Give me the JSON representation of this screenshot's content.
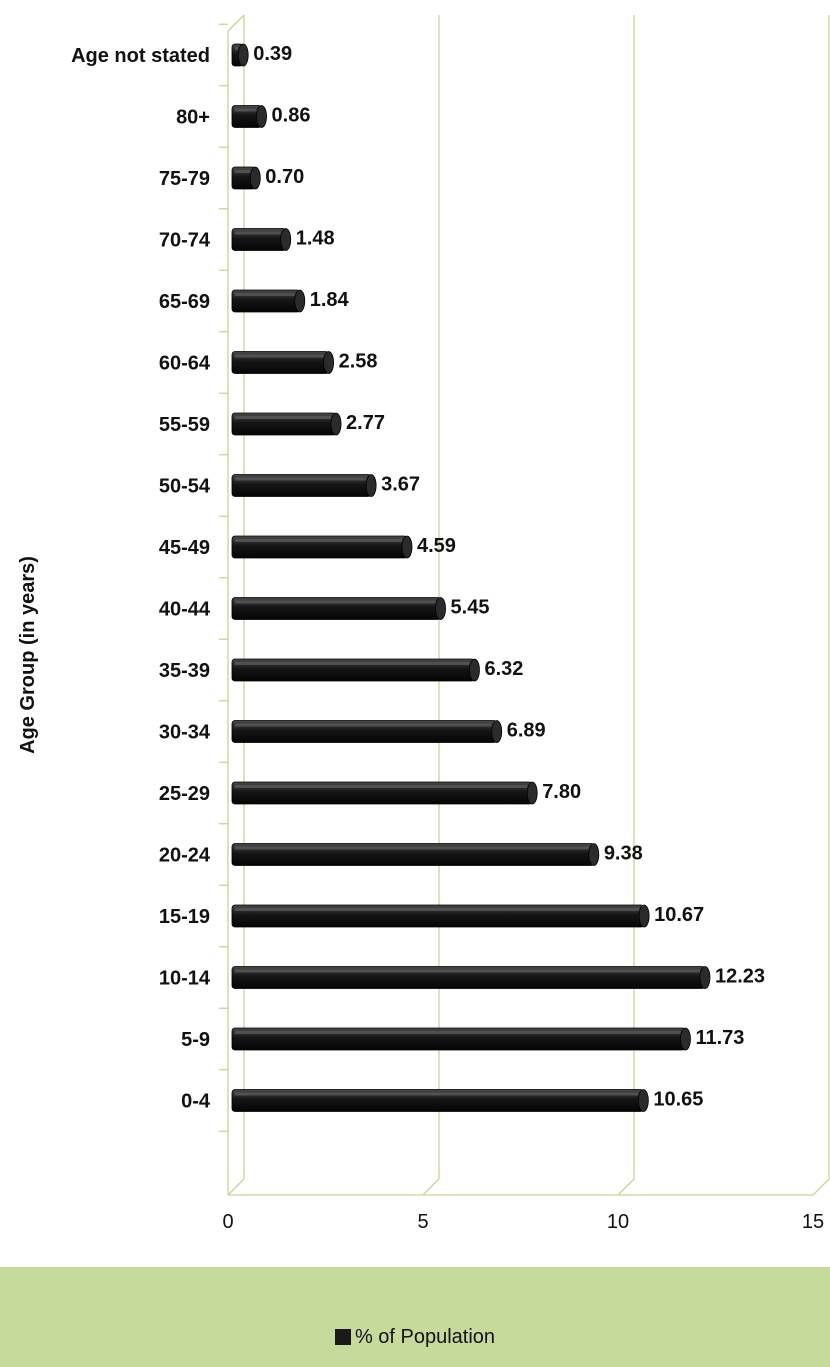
{
  "chart_data": {
    "type": "bar",
    "orientation": "horizontal",
    "categories": [
      "Age not stated",
      "80+",
      "75-79",
      "70-74",
      "65-69",
      "60-64",
      "55-59",
      "50-54",
      "45-49",
      "40-44",
      "35-39",
      "30-34",
      "25-29",
      "20-24",
      "15-19",
      "10-14",
      "5-9",
      "0-4"
    ],
    "series": [
      {
        "name": "% of Population",
        "values": [
          0.39,
          0.86,
          0.7,
          1.48,
          1.84,
          2.58,
          2.77,
          3.67,
          4.59,
          5.45,
          6.32,
          6.89,
          7.8,
          9.38,
          10.67,
          12.23,
          11.73,
          10.65
        ],
        "value_labels": [
          "0.39",
          "0.86",
          "0.70",
          "1.48",
          "1.84",
          "2.58",
          "2.77",
          "3.67",
          "4.59",
          "5.45",
          "6.32",
          "6.89",
          "7.80",
          "9.38",
          "10.67",
          "12.23",
          "11.73",
          "10.65"
        ],
        "color": "#1a1a1a"
      }
    ],
    "title": "",
    "xlabel": "",
    "ylabel": "Age Group (in years)",
    "xlim": [
      0,
      15
    ],
    "xticks": [
      0,
      5,
      10,
      15
    ],
    "grid": true,
    "grid_color": "#c8d49a",
    "legend_position": "bottom",
    "legend_background": "#c6da9c"
  }
}
